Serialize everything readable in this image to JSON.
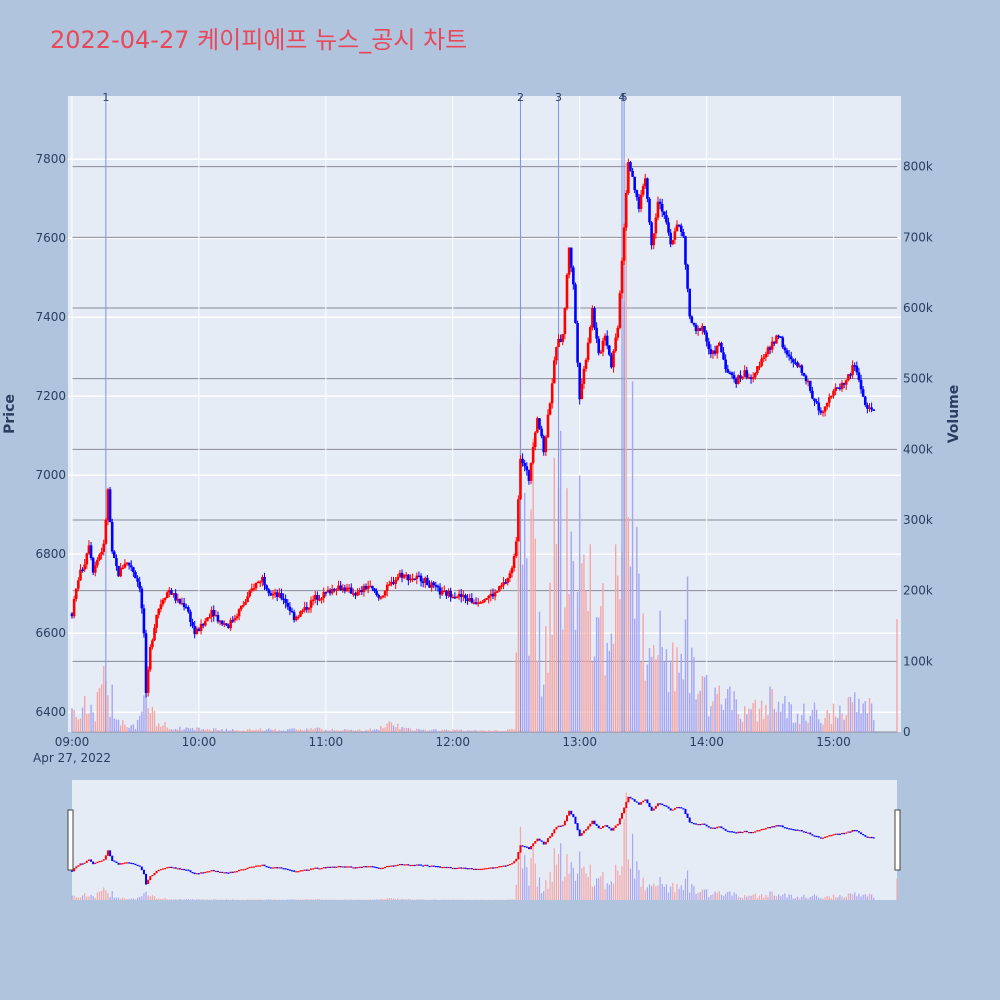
{
  "chart_data": {
    "type": "candlestick",
    "title": "2022-04-27 케이피에프 뉴스_공시 차트",
    "x_axis": {
      "tick_labels": [
        "09:00",
        "10:00",
        "11:00",
        "12:00",
        "13:00",
        "14:00",
        "15:00"
      ],
      "date_label": "Apr 27, 2022",
      "range": [
        "09:00",
        "15:30"
      ]
    },
    "y_axis_price": {
      "label": "Price",
      "range": [
        6350,
        7960
      ],
      "ticks": [
        6400,
        6600,
        6800,
        7000,
        7200,
        7400,
        7600,
        7800
      ]
    },
    "y_axis_volume": {
      "label": "Volume",
      "range": [
        0,
        900000
      ],
      "ticks": [
        0,
        100000,
        200000,
        300000,
        400000,
        500000,
        600000,
        700000,
        800000
      ],
      "tick_labels": [
        "0",
        "100k",
        "200k",
        "300k",
        "400k",
        "500k",
        "600k",
        "700k",
        "800k"
      ]
    },
    "news_markers": [
      {
        "label": "1",
        "time": "09:16"
      },
      {
        "label": "2",
        "time": "12:32"
      },
      {
        "label": "3",
        "time": "12:50"
      },
      {
        "label": "4",
        "time": "13:20"
      },
      {
        "label": "5",
        "time": "13:21"
      }
    ],
    "price_path": [
      [
        "09:00",
        6650
      ],
      [
        "09:03",
        6740
      ],
      [
        "09:06",
        6780
      ],
      [
        "09:08",
        6830
      ],
      [
        "09:10",
        6760
      ],
      [
        "09:13",
        6800
      ],
      [
        "09:15",
        6820
      ],
      [
        "09:17",
        6960
      ],
      [
        "09:19",
        6800
      ],
      [
        "09:22",
        6750
      ],
      [
        "09:25",
        6780
      ],
      [
        "09:28",
        6770
      ],
      [
        "09:32",
        6720
      ],
      [
        "09:34",
        6600
      ],
      [
        "09:35",
        6440
      ],
      [
        "09:37",
        6560
      ],
      [
        "09:40",
        6650
      ],
      [
        "09:43",
        6690
      ],
      [
        "09:46",
        6710
      ],
      [
        "09:50",
        6680
      ],
      [
        "09:54",
        6670
      ],
      [
        "09:58",
        6600
      ],
      [
        "10:02",
        6620
      ],
      [
        "10:06",
        6660
      ],
      [
        "10:10",
        6630
      ],
      [
        "10:14",
        6620
      ],
      [
        "10:18",
        6650
      ],
      [
        "10:22",
        6680
      ],
      [
        "10:26",
        6720
      ],
      [
        "10:30",
        6740
      ],
      [
        "10:34",
        6700
      ],
      [
        "10:40",
        6690
      ],
      [
        "10:45",
        6640
      ],
      [
        "10:50",
        6660
      ],
      [
        "10:55",
        6690
      ],
      [
        "11:00",
        6700
      ],
      [
        "11:05",
        6720
      ],
      [
        "11:10",
        6710
      ],
      [
        "11:15",
        6700
      ],
      [
        "11:20",
        6720
      ],
      [
        "11:25",
        6690
      ],
      [
        "11:30",
        6720
      ],
      [
        "11:35",
        6750
      ],
      [
        "11:40",
        6740
      ],
      [
        "11:45",
        6740
      ],
      [
        "11:50",
        6720
      ],
      [
        "11:55",
        6700
      ],
      [
        "12:00",
        6700
      ],
      [
        "12:05",
        6690
      ],
      [
        "12:10",
        6680
      ],
      [
        "12:15",
        6690
      ],
      [
        "12:20",
        6700
      ],
      [
        "12:25",
        6730
      ],
      [
        "12:28",
        6760
      ],
      [
        "12:30",
        6840
      ],
      [
        "12:32",
        7050
      ],
      [
        "12:34",
        7020
      ],
      [
        "12:36",
        6990
      ],
      [
        "12:38",
        7080
      ],
      [
        "12:40",
        7150
      ],
      [
        "12:43",
        7060
      ],
      [
        "12:46",
        7190
      ],
      [
        "12:49",
        7330
      ],
      [
        "12:52",
        7350
      ],
      [
        "12:55",
        7580
      ],
      [
        "12:57",
        7480
      ],
      [
        "13:00",
        7200
      ],
      [
        "13:03",
        7300
      ],
      [
        "13:06",
        7420
      ],
      [
        "13:09",
        7300
      ],
      [
        "13:12",
        7360
      ],
      [
        "13:15",
        7280
      ],
      [
        "13:18",
        7380
      ],
      [
        "13:20",
        7550
      ],
      [
        "13:23",
        7800
      ],
      [
        "13:26",
        7720
      ],
      [
        "13:28",
        7680
      ],
      [
        "13:31",
        7760
      ],
      [
        "13:34",
        7580
      ],
      [
        "13:37",
        7700
      ],
      [
        "13:40",
        7660
      ],
      [
        "13:43",
        7580
      ],
      [
        "13:46",
        7640
      ],
      [
        "13:49",
        7600
      ],
      [
        "13:52",
        7400
      ],
      [
        "13:55",
        7360
      ],
      [
        "13:58",
        7380
      ],
      [
        "14:02",
        7300
      ],
      [
        "14:06",
        7330
      ],
      [
        "14:10",
        7260
      ],
      [
        "14:14",
        7240
      ],
      [
        "14:18",
        7260
      ],
      [
        "14:22",
        7240
      ],
      [
        "14:26",
        7300
      ],
      [
        "14:30",
        7320
      ],
      [
        "14:34",
        7360
      ],
      [
        "14:38",
        7300
      ],
      [
        "14:42",
        7280
      ],
      [
        "14:46",
        7260
      ],
      [
        "14:50",
        7200
      ],
      [
        "14:54",
        7160
      ],
      [
        "14:58",
        7200
      ],
      [
        "15:02",
        7220
      ],
      [
        "15:06",
        7240
      ],
      [
        "15:10",
        7280
      ],
      [
        "15:13",
        7220
      ],
      [
        "15:16",
        7160
      ],
      [
        "15:19",
        7170
      ]
    ],
    "volume_path": [
      [
        "09:00",
        40000
      ],
      [
        "09:03",
        30000
      ],
      [
        "09:06",
        50000
      ],
      [
        "09:10",
        25000
      ],
      [
        "09:16",
        80000
      ],
      [
        "09:20",
        40000
      ],
      [
        "09:25",
        15000
      ],
      [
        "09:30",
        10000
      ],
      [
        "09:35",
        50000
      ],
      [
        "09:40",
        15000
      ],
      [
        "09:50",
        6000
      ],
      [
        "10:00",
        5000
      ],
      [
        "10:10",
        4000
      ],
      [
        "10:20",
        3000
      ],
      [
        "10:30",
        4000
      ],
      [
        "10:40",
        3000
      ],
      [
        "10:50",
        6000
      ],
      [
        "11:00",
        4000
      ],
      [
        "11:10",
        3000
      ],
      [
        "11:20",
        3000
      ],
      [
        "11:30",
        12000
      ],
      [
        "11:40",
        4000
      ],
      [
        "11:50",
        3000
      ],
      [
        "12:00",
        3000
      ],
      [
        "12:10",
        2000
      ],
      [
        "12:20",
        2000
      ],
      [
        "12:29",
        4000
      ],
      [
        "12:30",
        100000
      ],
      [
        "12:32",
        480000
      ],
      [
        "12:34",
        350000
      ],
      [
        "12:36",
        200000
      ],
      [
        "12:38",
        340000
      ],
      [
        "12:40",
        150000
      ],
      [
        "12:43",
        120000
      ],
      [
        "12:46",
        230000
      ],
      [
        "12:49",
        320000
      ],
      [
        "12:52",
        380000
      ],
      [
        "12:55",
        300000
      ],
      [
        "12:58",
        200000
      ],
      [
        "13:01",
        350000
      ],
      [
        "13:04",
        280000
      ],
      [
        "13:07",
        180000
      ],
      [
        "13:10",
        250000
      ],
      [
        "13:13",
        120000
      ],
      [
        "13:16",
        180000
      ],
      [
        "13:19",
        260000
      ],
      [
        "13:21",
        760000
      ],
      [
        "13:24",
        460000
      ],
      [
        "13:27",
        250000
      ],
      [
        "13:30",
        200000
      ],
      [
        "13:33",
        190000
      ],
      [
        "13:36",
        170000
      ],
      [
        "13:39",
        140000
      ],
      [
        "13:42",
        120000
      ],
      [
        "13:45",
        110000
      ],
      [
        "13:48",
        100000
      ],
      [
        "13:51",
        170000
      ],
      [
        "13:54",
        90000
      ],
      [
        "13:57",
        70000
      ],
      [
        "14:00",
        60000
      ],
      [
        "14:05",
        50000
      ],
      [
        "14:10",
        55000
      ],
      [
        "14:15",
        35000
      ],
      [
        "14:20",
        30000
      ],
      [
        "14:25",
        40000
      ],
      [
        "14:30",
        60000
      ],
      [
        "14:35",
        50000
      ],
      [
        "14:40",
        35000
      ],
      [
        "14:45",
        30000
      ],
      [
        "14:50",
        35000
      ],
      [
        "14:55",
        25000
      ],
      [
        "15:00",
        30000
      ],
      [
        "15:05",
        35000
      ],
      [
        "15:10",
        50000
      ],
      [
        "15:15",
        40000
      ],
      [
        "15:20",
        30000
      ],
      [
        "15:30",
        160000
      ]
    ],
    "colors": {
      "up": "#ff0000",
      "down": "#0000ff",
      "up_volume": "#f4a6a6",
      "down_volume": "#a6a6f4",
      "news_line": "#8090e8",
      "plot_bg": "#e5ecf6",
      "paper_bg": "#b0c4de",
      "title": "#e8485a"
    }
  }
}
